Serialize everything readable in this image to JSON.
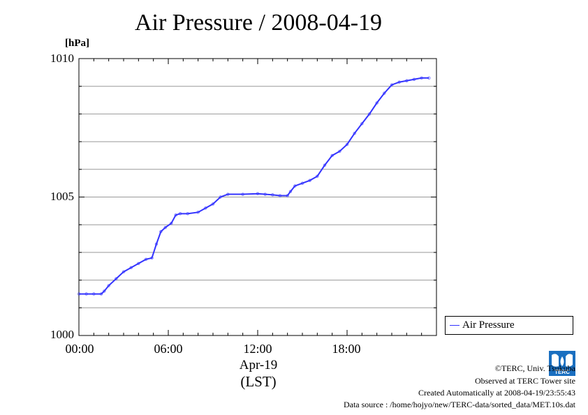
{
  "chart_data": {
    "type": "line",
    "title": "Air Pressure / 2008-04-19",
    "ylabel": "[hPa]",
    "ylim": [
      1000,
      1010
    ],
    "yticks": [
      "1010",
      "1005",
      "1000"
    ],
    "xlim": [
      0,
      24
    ],
    "xticks": [
      "00:00",
      "06:00",
      "12:00",
      "18:00"
    ],
    "xlabel_date": "Apr-19",
    "xlabel_tz": "(LST)",
    "grid": true,
    "legend_placement": "right-bottom",
    "series": [
      {
        "name": "Air Pressure",
        "color": "#3333ff",
        "x": [
          0,
          0.5,
          1,
          1.5,
          1.7,
          2,
          2.5,
          3,
          3.5,
          4,
          4.5,
          4.9,
          5.2,
          5.5,
          5.8,
          6.2,
          6.5,
          6.8,
          7.3,
          8,
          8.5,
          9,
          9.5,
          10,
          11,
          12,
          12.5,
          13,
          13.5,
          14,
          14.2,
          14.5,
          15,
          15.5,
          16,
          16.5,
          17,
          17.5,
          18,
          18.5,
          19,
          19.5,
          20,
          20.5,
          21,
          21.5,
          22,
          22.5,
          23,
          23.5
        ],
        "y": [
          1001.5,
          1001.5,
          1001.5,
          1001.5,
          1001.6,
          1001.8,
          1002.05,
          1002.3,
          1002.45,
          1002.6,
          1002.75,
          1002.8,
          1003.3,
          1003.75,
          1003.9,
          1004.05,
          1004.35,
          1004.4,
          1004.4,
          1004.45,
          1004.6,
          1004.75,
          1005.0,
          1005.1,
          1005.1,
          1005.12,
          1005.1,
          1005.08,
          1005.05,
          1005.05,
          1005.2,
          1005.4,
          1005.5,
          1005.6,
          1005.75,
          1006.15,
          1006.5,
          1006.65,
          1006.9,
          1007.3,
          1007.65,
          1008.0,
          1008.4,
          1008.75,
          1009.05,
          1009.15,
          1009.2,
          1009.25,
          1009.3,
          1009.3
        ]
      }
    ]
  },
  "footer": {
    "copyright": "©TERC, Univ. Tsukuba",
    "observed": "Observed at TERC Tower site",
    "created": "Created Automatically at 2008-04-19/23:55:43",
    "source": "Data source : /home/hojyo/new/TERC-data/sorted_data/MET.10s.dat"
  },
  "logo_text": "TERC"
}
